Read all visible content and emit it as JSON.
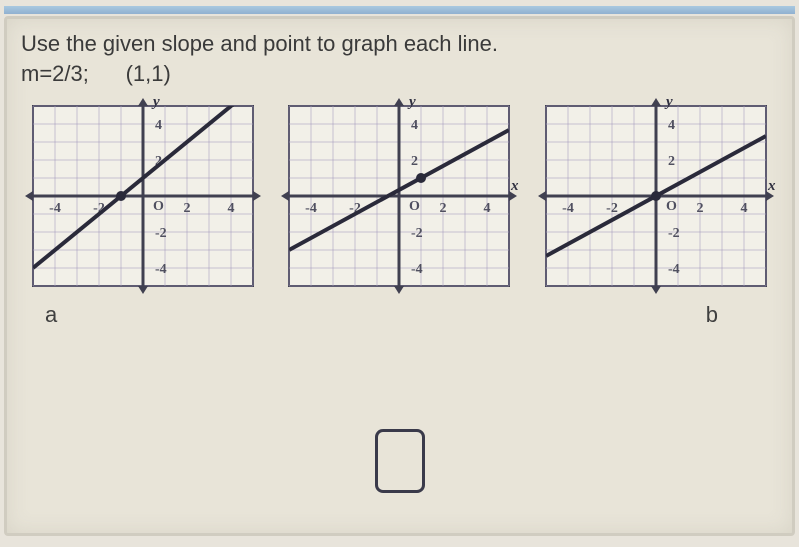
{
  "question": {
    "line1": "Use the given slope and point to graph each line.",
    "line2_a": "m=2/3;",
    "line2_b": "(1,1)"
  },
  "axis_label_y": "y",
  "axis_label_x": "x",
  "graphs": [
    {
      "id": "graph-a",
      "label": "a",
      "grid_color": "#a8a0c0",
      "axis_color": "#404050",
      "line_color": "#2a2a3a",
      "background": "#f2f0e8",
      "xlim": [
        -5,
        5
      ],
      "ylim": [
        -5,
        5
      ],
      "xticks": [
        -4,
        -2,
        2,
        4
      ],
      "yticks": [
        -4,
        -2,
        2,
        4
      ],
      "slope": 1,
      "intercept": 1,
      "point": [
        -1,
        0
      ],
      "show_x_label": false
    },
    {
      "id": "graph-middle",
      "label": "",
      "grid_color": "#a8a0c0",
      "axis_color": "#404050",
      "line_color": "#2a2a3a",
      "background": "#f2f0e8",
      "xlim": [
        -5,
        5
      ],
      "ylim": [
        -5,
        5
      ],
      "xticks": [
        -4,
        -2,
        2,
        4
      ],
      "yticks": [
        -4,
        -2,
        2,
        4
      ],
      "slope": 0.6667,
      "intercept": 0.3333,
      "point": [
        1,
        1
      ],
      "show_x_label": true
    },
    {
      "id": "graph-b",
      "label": "b",
      "grid_color": "#a8a0c0",
      "axis_color": "#404050",
      "line_color": "#2a2a3a",
      "background": "#f2f0e8",
      "xlim": [
        -5,
        5
      ],
      "ylim": [
        -5,
        5
      ],
      "xticks": [
        -4,
        -2,
        2,
        4
      ],
      "yticks": [
        -4,
        -2,
        2,
        4
      ],
      "slope": 0.6667,
      "intercept": 0,
      "point": [
        0,
        0
      ],
      "show_x_label": true
    }
  ],
  "tick_fontsize": 14,
  "axis_label_fontsize": 15
}
